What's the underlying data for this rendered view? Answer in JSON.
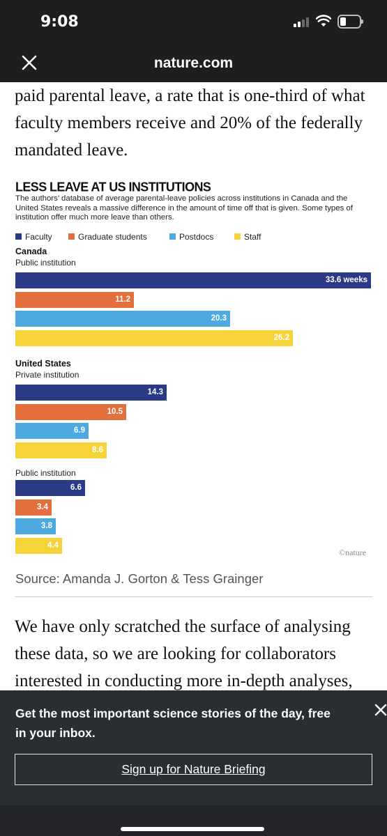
{
  "status_bar": {
    "time": "9:08"
  },
  "browser": {
    "site": "nature.com",
    "close_icon": "close-icon"
  },
  "article": {
    "para_top": "paid parental leave, a rate that is one-third of what faculty members receive and 20% of the federally mandated leave.",
    "para_bottom": "We have only scratched the surface of analysing these data, so we are looking for collaborators interested in conducting more in-depth analyses,"
  },
  "chart_data": {
    "type": "bar",
    "orientation": "horizontal",
    "title": "LESS LEAVE AT US INSTITUTIONS",
    "subtitle": "The authors’ database of average parental-leave policies across institutions in Canada and the United States reveals a massive difference in the amount of time off that is given. Some types of institution offer much more leave than others.",
    "unit": "weeks",
    "xlim": [
      0,
      33.6
    ],
    "legend_position": "top-left",
    "series": [
      {
        "name": "Faculty",
        "color": "#2b3a86"
      },
      {
        "name": "Graduate students",
        "color": "#e36f3e"
      },
      {
        "name": "Postdocs",
        "color": "#4da9df"
      },
      {
        "name": "Staff",
        "color": "#f6d33a"
      }
    ],
    "groups": [
      {
        "country": "Canada",
        "institution": "Public institution",
        "values": [
          33.6,
          11.2,
          20.3,
          26.2
        ],
        "labels": [
          "33.6 weeks",
          "11.2",
          "20.3",
          "26.2"
        ]
      },
      {
        "country": "United States",
        "institution": "Private institution",
        "values": [
          14.3,
          10.5,
          6.9,
          8.6
        ],
        "labels": [
          "14.3",
          "10.5",
          "6.9",
          "8.6"
        ]
      },
      {
        "country": "",
        "institution": "Public institution",
        "values": [
          6.6,
          3.4,
          3.8,
          4.4
        ],
        "labels": [
          "6.6",
          "3.4",
          "3.8",
          "4.4"
        ]
      }
    ],
    "credit": "©nature"
  },
  "source": "Source: Amanda J. Gorton & Tess Grainger",
  "banner": {
    "text": "Get the most important science stories of the day, free in your inbox.",
    "button": "Sign up for Nature Briefing",
    "close_icon": "close-icon"
  }
}
